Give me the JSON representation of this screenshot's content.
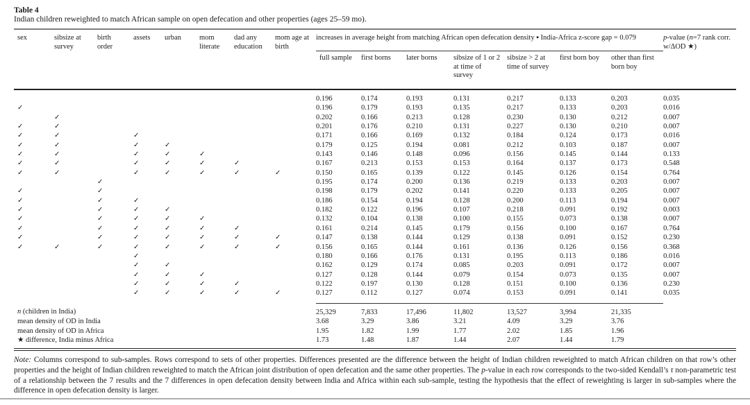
{
  "page": {
    "title": "Table 4",
    "subtitle": "Indian children reweighted to match African sample on open defecation and other properties (ages 25–59 mo)."
  },
  "table": {
    "checkmark": "✓",
    "property_columns": [
      "sex",
      "sibsize at survey",
      "birth order",
      "assets",
      "urban",
      "mom literate",
      "dad any education",
      "mom age at birth"
    ],
    "span_header": "increases in average height from matching African open defecation density ▪ India-Africa z-score gap = 0.079",
    "pvalue_header_segments": [
      {
        "t": "p",
        "i": true
      },
      {
        "t": "-value (",
        "i": false
      },
      {
        "t": "n",
        "i": true
      },
      {
        "t": "=7 rank corr. w/ΔOD ★)",
        "i": false
      }
    ],
    "result_columns": [
      "full sample",
      "first borns",
      "later borns",
      "sibsize of 1 or 2 at time of survey",
      "sibsize > 2 at time of survey",
      "first born boy",
      "other than first born boy"
    ],
    "rows": [
      {
        "checks": [
          0,
          0,
          0,
          0,
          0,
          0,
          0,
          0
        ],
        "values": [
          "0.196",
          "0.174",
          "0.193",
          "0.131",
          "0.217",
          "0.133",
          "0.203"
        ],
        "pvalue": "0.035"
      },
      {
        "checks": [
          1,
          0,
          0,
          0,
          0,
          0,
          0,
          0
        ],
        "values": [
          "0.196",
          "0.179",
          "0.193",
          "0.135",
          "0.217",
          "0.133",
          "0.203"
        ],
        "pvalue": "0.016"
      },
      {
        "checks": [
          0,
          1,
          0,
          0,
          0,
          0,
          0,
          0
        ],
        "values": [
          "0.202",
          "0.166",
          "0.213",
          "0.128",
          "0.230",
          "0.130",
          "0.212"
        ],
        "pvalue": "0.007"
      },
      {
        "checks": [
          1,
          1,
          0,
          0,
          0,
          0,
          0,
          0
        ],
        "values": [
          "0.201",
          "0.176",
          "0.210",
          "0.131",
          "0.227",
          "0.130",
          "0.210"
        ],
        "pvalue": "0.007"
      },
      {
        "checks": [
          1,
          1,
          0,
          1,
          0,
          0,
          0,
          0
        ],
        "values": [
          "0.171",
          "0.166",
          "0.169",
          "0.132",
          "0.184",
          "0.124",
          "0.173"
        ],
        "pvalue": "0.016"
      },
      {
        "checks": [
          1,
          1,
          0,
          1,
          1,
          0,
          0,
          0
        ],
        "values": [
          "0.179",
          "0.125",
          "0.194",
          "0.081",
          "0.212",
          "0.103",
          "0.187"
        ],
        "pvalue": "0.007"
      },
      {
        "checks": [
          1,
          1,
          0,
          1,
          1,
          1,
          0,
          0
        ],
        "values": [
          "0.143",
          "0.146",
          "0.148",
          "0.096",
          "0.156",
          "0.145",
          "0.144"
        ],
        "pvalue": "0.133"
      },
      {
        "checks": [
          1,
          1,
          0,
          1,
          1,
          1,
          1,
          0
        ],
        "values": [
          "0.167",
          "0.213",
          "0.153",
          "0.153",
          "0.164",
          "0.137",
          "0.173"
        ],
        "pvalue": "0.548"
      },
      {
        "checks": [
          1,
          1,
          0,
          1,
          1,
          1,
          1,
          1
        ],
        "values": [
          "0.150",
          "0.165",
          "0.139",
          "0.122",
          "0.145",
          "0.126",
          "0.154"
        ],
        "pvalue": "0.764"
      },
      {
        "checks": [
          0,
          0,
          1,
          0,
          0,
          0,
          0,
          0
        ],
        "values": [
          "0.195",
          "0.174",
          "0.200",
          "0.136",
          "0.219",
          "0.133",
          "0.203"
        ],
        "pvalue": "0.007"
      },
      {
        "checks": [
          1,
          0,
          1,
          0,
          0,
          0,
          0,
          0
        ],
        "values": [
          "0.198",
          "0.179",
          "0.202",
          "0.141",
          "0.220",
          "0.133",
          "0.205"
        ],
        "pvalue": "0.007"
      },
      {
        "checks": [
          1,
          0,
          1,
          1,
          0,
          0,
          0,
          0
        ],
        "values": [
          "0.186",
          "0.154",
          "0.194",
          "0.128",
          "0.200",
          "0.113",
          "0.194"
        ],
        "pvalue": "0.007"
      },
      {
        "checks": [
          1,
          0,
          1,
          1,
          1,
          0,
          0,
          0
        ],
        "values": [
          "0.182",
          "0.122",
          "0.196",
          "0.107",
          "0.218",
          "0.091",
          "0.192"
        ],
        "pvalue": "0.003"
      },
      {
        "checks": [
          1,
          0,
          1,
          1,
          1,
          1,
          0,
          0
        ],
        "values": [
          "0.132",
          "0.104",
          "0.138",
          "0.100",
          "0.155",
          "0.073",
          "0.138"
        ],
        "pvalue": "0.007"
      },
      {
        "checks": [
          1,
          0,
          1,
          1,
          1,
          1,
          1,
          0
        ],
        "values": [
          "0.161",
          "0.214",
          "0.145",
          "0.179",
          "0.156",
          "0.100",
          "0.167"
        ],
        "pvalue": "0.764"
      },
      {
        "checks": [
          1,
          0,
          1,
          1,
          1,
          1,
          1,
          1
        ],
        "values": [
          "0.147",
          "0.138",
          "0.144",
          "0.129",
          "0.138",
          "0.091",
          "0.152"
        ],
        "pvalue": "0.230"
      },
      {
        "checks": [
          1,
          1,
          1,
          1,
          1,
          1,
          1,
          1
        ],
        "values": [
          "0.156",
          "0.165",
          "0.144",
          "0.161",
          "0.136",
          "0.126",
          "0.156"
        ],
        "pvalue": "0.368"
      },
      {
        "checks": [
          0,
          0,
          0,
          1,
          0,
          0,
          0,
          0
        ],
        "values": [
          "0.180",
          "0.166",
          "0.176",
          "0.131",
          "0.195",
          "0.113",
          "0.186"
        ],
        "pvalue": "0.016"
      },
      {
        "checks": [
          0,
          0,
          0,
          1,
          1,
          0,
          0,
          0
        ],
        "values": [
          "0.162",
          "0.129",
          "0.174",
          "0.085",
          "0.203",
          "0.091",
          "0.172"
        ],
        "pvalue": "0.007"
      },
      {
        "checks": [
          0,
          0,
          0,
          1,
          1,
          1,
          0,
          0
        ],
        "values": [
          "0.127",
          "0.128",
          "0.144",
          "0.079",
          "0.154",
          "0.073",
          "0.135"
        ],
        "pvalue": "0.007"
      },
      {
        "checks": [
          0,
          0,
          0,
          1,
          1,
          1,
          1,
          0
        ],
        "values": [
          "0.122",
          "0.197",
          "0.130",
          "0.128",
          "0.151",
          "0.100",
          "0.136"
        ],
        "pvalue": "0.230"
      },
      {
        "checks": [
          0,
          0,
          0,
          1,
          1,
          1,
          1,
          1
        ],
        "values": [
          "0.127",
          "0.112",
          "0.127",
          "0.074",
          "0.153",
          "0.091",
          "0.141"
        ],
        "pvalue": "0.035"
      }
    ],
    "summary_rows": [
      {
        "label_segments": [
          {
            "t": "n",
            "i": true
          },
          {
            "t": " (children in India)",
            "i": false
          }
        ],
        "values": [
          "25,329",
          "7,833",
          "17,496",
          "11,802",
          "13,527",
          "3,994",
          "21,335"
        ]
      },
      {
        "label_segments": [
          {
            "t": "mean density of OD in India",
            "i": false
          }
        ],
        "values": [
          "3.68",
          "3.29",
          "3.86",
          "3.21",
          "4.09",
          "3.29",
          "3.76"
        ]
      },
      {
        "label_segments": [
          {
            "t": "mean density of OD in Africa",
            "i": false
          }
        ],
        "values": [
          "1.95",
          "1.82",
          "1.99",
          "1.77",
          "2.02",
          "1.85",
          "1.96"
        ]
      },
      {
        "label_segments": [
          {
            "t": "★ difference, India minus Africa",
            "i": false
          }
        ],
        "values": [
          "1.73",
          "1.48",
          "1.87",
          "1.44",
          "2.07",
          "1.44",
          "1.79"
        ]
      }
    ]
  },
  "note": {
    "segments": [
      {
        "t": "Note:",
        "i": true
      },
      {
        "t": " Columns correspond to sub-samples. Rows correspond to sets of other properties. Differences presented are the difference between the height of Indian children reweighted to match African children on that row’s other properties and the height of Indian children reweighted to match the African joint distribution of open defecation and the same other properties. The ",
        "i": false
      },
      {
        "t": "p",
        "i": true
      },
      {
        "t": "-value in each row corresponds to the two-sided Kendall’s ",
        "i": false
      },
      {
        "t": "τ",
        "i": true
      },
      {
        "t": " non-parametric test of a relationship between the 7 results and the 7 differences in open defecation density between India and Africa within each sub-sample, testing the hypothesis that the effect of reweighting is larger in sub-samples where the difference in open defecation density is larger.",
        "i": false
      }
    ]
  }
}
